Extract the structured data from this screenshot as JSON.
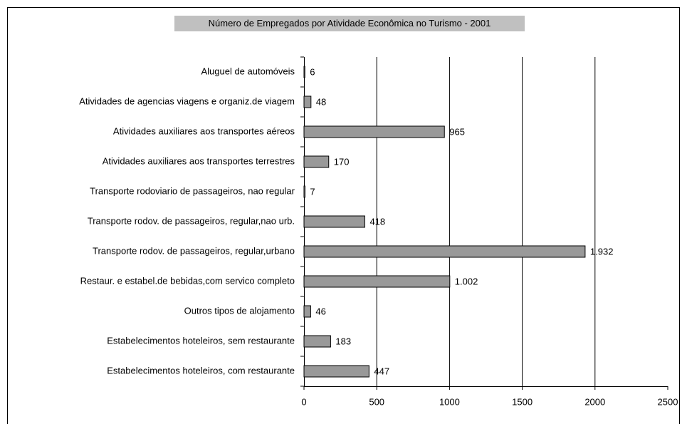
{
  "chart_data": {
    "type": "bar",
    "orientation": "horizontal",
    "title": "Número de Empregados por Atividade Econômica no Turismo - 2001",
    "categories": [
      "Aluguel de automóveis",
      "Atividades de agencias viagens e organiz.de viagem",
      "Atividades auxiliares aos transportes aéreos",
      "Atividades auxiliares aos transportes terrestres",
      "Transporte rodoviario de passageiros, nao regular",
      "Transporte rodov. de passageiros, regular,nao urb.",
      "Transporte rodov. de passageiros, regular,urbano",
      "Restaur. e estabel.de bebidas,com servico completo",
      "Outros tipos de alojamento",
      "Estabelecimentos hoteleiros, sem restaurante",
      "Estabelecimentos hoteleiros, com restaurante"
    ],
    "values": [
      6,
      48,
      965,
      170,
      7,
      418,
      1932,
      1002,
      46,
      183,
      447
    ],
    "value_labels": [
      "6",
      "48",
      "965",
      "170",
      "7",
      "418",
      "1.932",
      "1.002",
      "46",
      "183",
      "447"
    ],
    "color": "#999999",
    "xlim": [
      0,
      2500
    ],
    "xticks": [
      0,
      500,
      1000,
      1500,
      2000,
      2500
    ],
    "grid": true
  }
}
